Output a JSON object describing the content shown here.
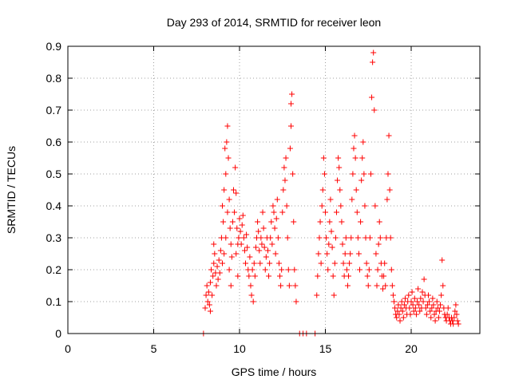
{
  "chart_data": {
    "type": "scatter",
    "title": "Day 293 of 2014, SRMTID for receiver leon",
    "xlabel": "GPS time / hours",
    "ylabel": "SRMTID / TECUs",
    "xlim": [
      0,
      24
    ],
    "ylim": [
      0,
      0.9
    ],
    "xticks": [
      0,
      5,
      10,
      15,
      20
    ],
    "xtick_labels": [
      "0",
      "5",
      "10",
      "15",
      "20"
    ],
    "yticks": [
      0,
      0.1,
      0.2,
      0.3,
      0.4,
      0.5,
      0.6,
      0.7,
      0.8,
      0.9
    ],
    "ytick_labels": [
      "0",
      "0.1",
      "0.2",
      "0.3",
      "0.4",
      "0.5",
      "0.6",
      "0.7",
      "0.8",
      "0.9"
    ],
    "grid": true,
    "marker": "+",
    "series": [
      {
        "name": "SRMTID",
        "color": "#ff0000",
        "points": [
          [
            7.9,
            0.0
          ],
          [
            8.0,
            0.08
          ],
          [
            8.05,
            0.12
          ],
          [
            8.1,
            0.15
          ],
          [
            8.15,
            0.1
          ],
          [
            8.2,
            0.13
          ],
          [
            8.25,
            0.09
          ],
          [
            8.3,
            0.07
          ],
          [
            8.3,
            0.16
          ],
          [
            8.35,
            0.2
          ],
          [
            8.4,
            0.12
          ],
          [
            8.45,
            0.18
          ],
          [
            8.5,
            0.22
          ],
          [
            8.5,
            0.28
          ],
          [
            8.55,
            0.25
          ],
          [
            8.6,
            0.19
          ],
          [
            8.65,
            0.15
          ],
          [
            8.7,
            0.21
          ],
          [
            8.75,
            0.17
          ],
          [
            8.8,
            0.23
          ],
          [
            8.85,
            0.19
          ],
          [
            8.9,
            0.26
          ],
          [
            8.95,
            0.3
          ],
          [
            9.0,
            0.22
          ],
          [
            9.0,
            0.4
          ],
          [
            9.05,
            0.35
          ],
          [
            9.1,
            0.45
          ],
          [
            9.1,
            0.25
          ],
          [
            9.15,
            0.58
          ],
          [
            9.2,
            0.5
          ],
          [
            9.2,
            0.3
          ],
          [
            9.25,
            0.6
          ],
          [
            9.3,
            0.65
          ],
          [
            9.3,
            0.38
          ],
          [
            9.35,
            0.55
          ],
          [
            9.4,
            0.42
          ],
          [
            9.4,
            0.2
          ],
          [
            9.45,
            0.33
          ],
          [
            9.5,
            0.28
          ],
          [
            9.5,
            0.15
          ],
          [
            9.55,
            0.24
          ],
          [
            9.6,
            0.35
          ],
          [
            9.65,
            0.45
          ],
          [
            9.7,
            0.38
          ],
          [
            9.75,
            0.52
          ],
          [
            9.8,
            0.44
          ],
          [
            9.8,
            0.25
          ],
          [
            9.85,
            0.33
          ],
          [
            9.9,
            0.28
          ],
          [
            9.9,
            0.18
          ],
          [
            9.95,
            0.3
          ],
          [
            10.0,
            0.36
          ],
          [
            10.05,
            0.32
          ],
          [
            10.1,
            0.28
          ],
          [
            10.15,
            0.34
          ],
          [
            10.2,
            0.37
          ],
          [
            10.25,
            0.3
          ],
          [
            10.3,
            0.26
          ],
          [
            10.35,
            0.22
          ],
          [
            10.4,
            0.31
          ],
          [
            10.45,
            0.27
          ],
          [
            10.5,
            0.2
          ],
          [
            10.55,
            0.18
          ],
          [
            10.6,
            0.24
          ],
          [
            10.65,
            0.15
          ],
          [
            10.7,
            0.12
          ],
          [
            10.75,
            0.2
          ],
          [
            10.8,
            0.1
          ],
          [
            10.85,
            0.22
          ],
          [
            10.9,
            0.18
          ],
          [
            10.95,
            0.27
          ],
          [
            11.0,
            0.3
          ],
          [
            11.05,
            0.35
          ],
          [
            11.1,
            0.32
          ],
          [
            11.15,
            0.26
          ],
          [
            11.2,
            0.22
          ],
          [
            11.25,
            0.3
          ],
          [
            11.3,
            0.28
          ],
          [
            11.35,
            0.38
          ],
          [
            11.4,
            0.33
          ],
          [
            11.45,
            0.27
          ],
          [
            11.5,
            0.2
          ],
          [
            11.55,
            0.24
          ],
          [
            11.6,
            0.3
          ],
          [
            11.65,
            0.26
          ],
          [
            11.7,
            0.18
          ],
          [
            11.75,
            0.22
          ],
          [
            11.8,
            0.3
          ],
          [
            11.85,
            0.35
          ],
          [
            11.9,
            0.28
          ],
          [
            11.95,
            0.4
          ],
          [
            12.0,
            0.38
          ],
          [
            12.05,
            0.33
          ],
          [
            12.1,
            0.25
          ],
          [
            12.15,
            0.36
          ],
          [
            12.2,
            0.42
          ],
          [
            12.25,
            0.3
          ],
          [
            12.3,
            0.22
          ],
          [
            12.35,
            0.18
          ],
          [
            12.4,
            0.15
          ],
          [
            12.45,
            0.2
          ],
          [
            12.5,
            0.38
          ],
          [
            12.55,
            0.45
          ],
          [
            12.6,
            0.52
          ],
          [
            12.65,
            0.48
          ],
          [
            12.7,
            0.55
          ],
          [
            12.75,
            0.4
          ],
          [
            12.8,
            0.3
          ],
          [
            12.85,
            0.2
          ],
          [
            12.9,
            0.15
          ],
          [
            12.95,
            0.58
          ],
          [
            13.0,
            0.65
          ],
          [
            13.0,
            0.72
          ],
          [
            13.05,
            0.75
          ],
          [
            13.1,
            0.5
          ],
          [
            13.15,
            0.35
          ],
          [
            13.2,
            0.2
          ],
          [
            13.25,
            0.15
          ],
          [
            13.3,
            0.1
          ],
          [
            13.5,
            0.0
          ],
          [
            13.7,
            0.0
          ],
          [
            13.9,
            0.0
          ],
          [
            14.4,
            0.0
          ],
          [
            14.5,
            0.12
          ],
          [
            14.55,
            0.18
          ],
          [
            14.6,
            0.25
          ],
          [
            14.65,
            0.3
          ],
          [
            14.7,
            0.35
          ],
          [
            14.75,
            0.22
          ],
          [
            14.8,
            0.4
          ],
          [
            14.85,
            0.45
          ],
          [
            14.9,
            0.55
          ],
          [
            14.95,
            0.5
          ],
          [
            15.0,
            0.38
          ],
          [
            15.05,
            0.3
          ],
          [
            15.1,
            0.25
          ],
          [
            15.15,
            0.2
          ],
          [
            15.2,
            0.28
          ],
          [
            15.25,
            0.35
          ],
          [
            15.3,
            0.42
          ],
          [
            15.35,
            0.32
          ],
          [
            15.4,
            0.27
          ],
          [
            15.45,
            0.18
          ],
          [
            15.5,
            0.12
          ],
          [
            15.55,
            0.22
          ],
          [
            15.6,
            0.3
          ],
          [
            15.65,
            0.38
          ],
          [
            15.7,
            0.48
          ],
          [
            15.75,
            0.55
          ],
          [
            15.8,
            0.52
          ],
          [
            15.85,
            0.45
          ],
          [
            15.9,
            0.4
          ],
          [
            15.95,
            0.35
          ],
          [
            16.0,
            0.28
          ],
          [
            16.05,
            0.22
          ],
          [
            16.1,
            0.18
          ],
          [
            16.15,
            0.25
          ],
          [
            16.2,
            0.3
          ],
          [
            16.25,
            0.2
          ],
          [
            16.3,
            0.15
          ],
          [
            16.35,
            0.18
          ],
          [
            16.4,
            0.22
          ],
          [
            16.45,
            0.25
          ],
          [
            16.5,
            0.3
          ],
          [
            16.55,
            0.42
          ],
          [
            16.6,
            0.5
          ],
          [
            16.65,
            0.58
          ],
          [
            16.7,
            0.62
          ],
          [
            16.75,
            0.55
          ],
          [
            16.8,
            0.45
          ],
          [
            16.85,
            0.38
          ],
          [
            16.9,
            0.3
          ],
          [
            16.95,
            0.25
          ],
          [
            17.0,
            0.2
          ],
          [
            17.05,
            0.35
          ],
          [
            17.1,
            0.48
          ],
          [
            17.15,
            0.55
          ],
          [
            17.2,
            0.6
          ],
          [
            17.25,
            0.5
          ],
          [
            17.3,
            0.4
          ],
          [
            17.35,
            0.3
          ],
          [
            17.4,
            0.22
          ],
          [
            17.45,
            0.18
          ],
          [
            17.5,
            0.15
          ],
          [
            17.55,
            0.2
          ],
          [
            17.6,
            0.3
          ],
          [
            17.65,
            0.5
          ],
          [
            17.7,
            0.74
          ],
          [
            17.75,
            0.85
          ],
          [
            17.8,
            0.88
          ],
          [
            17.85,
            0.7
          ],
          [
            17.9,
            0.4
          ],
          [
            17.95,
            0.25
          ],
          [
            18.0,
            0.15
          ],
          [
            18.05,
            0.2
          ],
          [
            18.1,
            0.28
          ],
          [
            18.15,
            0.35
          ],
          [
            18.2,
            0.3
          ],
          [
            18.25,
            0.22
          ],
          [
            18.3,
            0.18
          ],
          [
            18.35,
            0.14
          ],
          [
            18.4,
            0.18
          ],
          [
            18.45,
            0.22
          ],
          [
            18.5,
            0.15
          ],
          [
            18.55,
            0.3
          ],
          [
            18.6,
            0.42
          ],
          [
            18.65,
            0.5
          ],
          [
            18.7,
            0.62
          ],
          [
            18.75,
            0.45
          ],
          [
            18.8,
            0.3
          ],
          [
            18.85,
            0.2
          ],
          [
            18.9,
            0.15
          ],
          [
            18.95,
            0.12
          ],
          [
            19.0,
            0.1
          ],
          [
            19.05,
            0.08
          ],
          [
            19.1,
            0.06
          ],
          [
            19.15,
            0.05
          ],
          [
            19.2,
            0.07
          ],
          [
            19.25,
            0.09
          ],
          [
            19.3,
            0.06
          ],
          [
            19.35,
            0.04
          ],
          [
            19.4,
            0.08
          ],
          [
            19.45,
            0.1
          ],
          [
            19.5,
            0.07
          ],
          [
            19.55,
            0.05
          ],
          [
            19.6,
            0.09
          ],
          [
            19.65,
            0.11
          ],
          [
            19.7,
            0.08
          ],
          [
            19.75,
            0.06
          ],
          [
            19.8,
            0.1
          ],
          [
            19.85,
            0.12
          ],
          [
            19.9,
            0.08
          ],
          [
            19.95,
            0.06
          ],
          [
            20.0,
            0.1
          ],
          [
            20.05,
            0.13
          ],
          [
            20.1,
            0.09
          ],
          [
            20.15,
            0.07
          ],
          [
            20.2,
            0.11
          ],
          [
            20.25,
            0.08
          ],
          [
            20.3,
            0.06
          ],
          [
            20.35,
            0.1
          ],
          [
            20.4,
            0.14
          ],
          [
            20.45,
            0.09
          ],
          [
            20.5,
            0.07
          ],
          [
            20.55,
            0.11
          ],
          [
            20.6,
            0.08
          ],
          [
            20.65,
            0.13
          ],
          [
            20.7,
            0.1
          ],
          [
            20.75,
            0.17
          ],
          [
            20.8,
            0.12
          ],
          [
            20.85,
            0.08
          ],
          [
            20.9,
            0.06
          ],
          [
            20.95,
            0.09
          ],
          [
            21.0,
            0.12
          ],
          [
            21.05,
            0.1
          ],
          [
            21.1,
            0.07
          ],
          [
            21.15,
            0.05
          ],
          [
            21.2,
            0.08
          ],
          [
            21.25,
            0.11
          ],
          [
            21.3,
            0.09
          ],
          [
            21.35,
            0.06
          ],
          [
            21.4,
            0.04
          ],
          [
            21.45,
            0.07
          ],
          [
            21.5,
            0.1
          ],
          [
            21.55,
            0.08
          ],
          [
            21.6,
            0.05
          ],
          [
            21.65,
            0.07
          ],
          [
            21.7,
            0.09
          ],
          [
            21.75,
            0.12
          ],
          [
            21.8,
            0.23
          ],
          [
            21.85,
            0.15
          ],
          [
            21.9,
            0.08
          ],
          [
            21.95,
            0.06
          ],
          [
            22.0,
            0.05
          ],
          [
            22.05,
            0.04
          ],
          [
            22.1,
            0.06
          ],
          [
            22.15,
            0.08
          ],
          [
            22.2,
            0.05
          ],
          [
            22.25,
            0.04
          ],
          [
            22.3,
            0.03
          ],
          [
            22.35,
            0.05
          ],
          [
            22.4,
            0.04
          ],
          [
            22.45,
            0.03
          ],
          [
            22.5,
            0.05
          ],
          [
            22.55,
            0.07
          ],
          [
            22.6,
            0.09
          ],
          [
            22.65,
            0.06
          ],
          [
            22.7,
            0.04
          ],
          [
            22.75,
            0.03
          ]
        ]
      }
    ]
  }
}
